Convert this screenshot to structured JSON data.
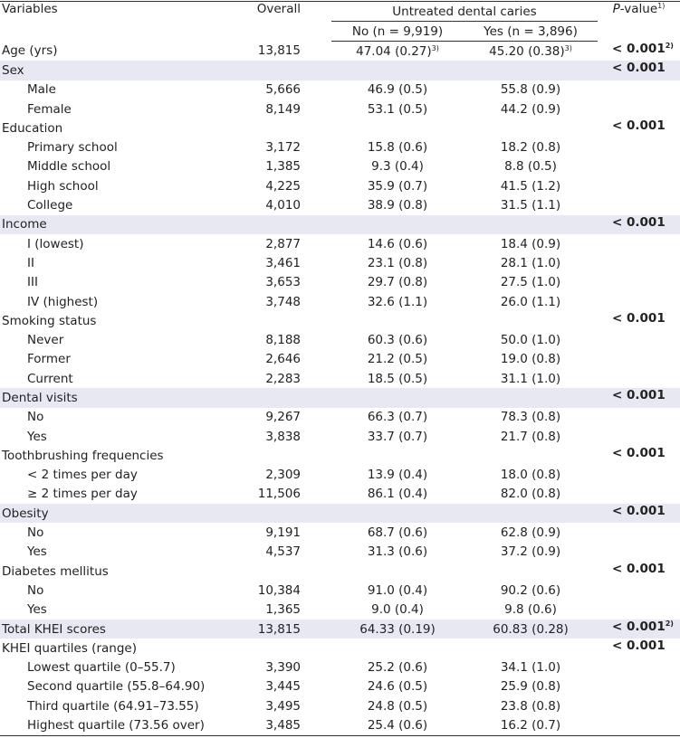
{
  "table": {
    "header": {
      "variables": "Variables",
      "overall": "Overall",
      "group": "Untreated dental caries",
      "no": "No (n = 9,919)",
      "yes": "Yes (n = 3,896)",
      "p_italic": "P",
      "p_rest": "-value",
      "p_sup": "1)"
    },
    "sections": [
      {
        "label": "Age (yrs)",
        "overall": "13,815",
        "no": "47.04 (0.27)",
        "no_sup": "3)",
        "yes": "45.20 (0.38)",
        "yes_sup": "3)",
        "p": "< 0.001",
        "p_sup": "2)",
        "items": []
      },
      {
        "label": "Sex",
        "p": "< 0.001",
        "items": [
          {
            "label": "Male",
            "overall": "5,666",
            "no": "46.9 (0.5)",
            "yes": "55.8 (0.9)"
          },
          {
            "label": "Female",
            "overall": "8,149",
            "no": "53.1 (0.5)",
            "yes": "44.2 (0.9)"
          }
        ]
      },
      {
        "label": "Education",
        "p": "< 0.001",
        "items": [
          {
            "label": "Primary school",
            "overall": "3,172",
            "no": "15.8 (0.6)",
            "yes": "18.2 (0.8)"
          },
          {
            "label": "Middle school",
            "overall": "1,385",
            "no": "9.3 (0.4)",
            "yes": "8.8 (0.5)"
          },
          {
            "label": "High school",
            "overall": "4,225",
            "no": "35.9 (0.7)",
            "yes": "41.5 (1.2)"
          },
          {
            "label": "College",
            "overall": "4,010",
            "no": "38.9 (0.8)",
            "yes": "31.5 (1.1)"
          }
        ]
      },
      {
        "label": "Income",
        "p": "< 0.001",
        "items": [
          {
            "label": "I (lowest)",
            "overall": "2,877",
            "no": "14.6 (0.6)",
            "yes": "18.4 (0.9)"
          },
          {
            "label": "II",
            "overall": "3,461",
            "no": "23.1 (0.8)",
            "yes": "28.1 (1.0)"
          },
          {
            "label": "III",
            "overall": "3,653",
            "no": "29.7 (0.8)",
            "yes": "27.5 (1.0)"
          },
          {
            "label": "IV (highest)",
            "overall": "3,748",
            "no": "32.6 (1.1)",
            "yes": "26.0 (1.1)"
          }
        ]
      },
      {
        "label": "Smoking status",
        "p": "< 0.001",
        "items": [
          {
            "label": "Never",
            "overall": "8,188",
            "no": "60.3 (0.6)",
            "yes": "50.0 (1.0)"
          },
          {
            "label": "Former",
            "overall": "2,646",
            "no": "21.2 (0.5)",
            "yes": "19.0 (0.8)"
          },
          {
            "label": "Current",
            "overall": "2,283",
            "no": "18.5 (0.5)",
            "yes": "31.1 (1.0)"
          }
        ]
      },
      {
        "label": "Dental visits",
        "p": "< 0.001",
        "items": [
          {
            "label": "No",
            "overall": "9,267",
            "no": "66.3 (0.7)",
            "yes": "78.3 (0.8)"
          },
          {
            "label": "Yes",
            "overall": "3,838",
            "no": "33.7 (0.7)",
            "yes": "21.7 (0.8)"
          }
        ]
      },
      {
        "label": "Toothbrushing frequencies",
        "p": "< 0.001",
        "items": [
          {
            "label": "< 2 times per day",
            "overall": "2,309",
            "no": "13.9 (0.4)",
            "yes": "18.0 (0.8)"
          },
          {
            "label": "≥ 2 times per day",
            "overall": "11,506",
            "no": "86.1 (0.4)",
            "yes": "82.0 (0.8)"
          }
        ]
      },
      {
        "label": "Obesity",
        "p": "< 0.001",
        "items": [
          {
            "label": "No",
            "overall": "9,191",
            "no": "68.7 (0.6)",
            "yes": "62.8 (0.9)"
          },
          {
            "label": "Yes",
            "overall": "4,537",
            "no": "31.3 (0.6)",
            "yes": "37.2 (0.9)"
          }
        ]
      },
      {
        "label": "Diabetes mellitus",
        "p": "< 0.001",
        "items": [
          {
            "label": "No",
            "overall": "10,384",
            "no": "91.0 (0.4)",
            "yes": "90.2 (0.6)"
          },
          {
            "label": "Yes",
            "overall": "1,365",
            "no": "9.0 (0.4)",
            "yes": "9.8 (0.6)"
          }
        ]
      },
      {
        "label": "Total KHEI scores",
        "overall": "13,815",
        "no": "64.33 (0.19)",
        "yes": "60.83 (0.28)",
        "p": "< 0.001",
        "p_sup": "2)",
        "items": []
      },
      {
        "label": "KHEI quartiles (range)",
        "p": "< 0.001",
        "items": [
          {
            "label": "Lowest quartile (0–55.7)",
            "overall": "3,390",
            "no": "25.2 (0.6)",
            "yes": "34.1 (1.0)"
          },
          {
            "label": "Second quartile (55.8–64.90)",
            "overall": "3,445",
            "no": "24.6 (0.5)",
            "yes": "25.9 (0.8)"
          },
          {
            "label": "Third quartile (64.91–73.55)",
            "overall": "3,495",
            "no": "24.8 (0.5)",
            "yes": "23.8 (0.8)"
          },
          {
            "label": "Highest quartile (73.56 over)",
            "overall": "3,485",
            "no": "25.4 (0.6)",
            "yes": "16.2 (0.7)"
          }
        ]
      }
    ]
  }
}
